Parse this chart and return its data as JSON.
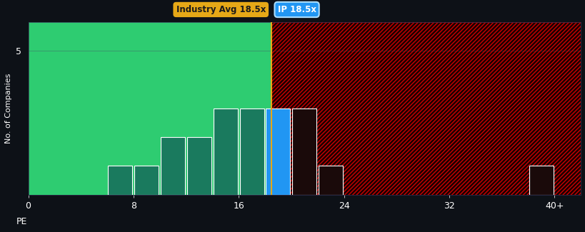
{
  "bg_color": "#0d1117",
  "plot_bg_left": "#2ecc71",
  "plot_bg_right_hatch_bg": "#1a0000",
  "bar_color_green": "#1a7a5e",
  "bar_color_blue": "#2196f3",
  "bar_color_right": "#1a0a0a",
  "bar_edge_color": "#ffffff",
  "industry_line_color": "#e6a817",
  "industry_label_bg": "#e6a817",
  "industry_label_fg": "#1a1a1a",
  "ip_label_bg": "#2196f3",
  "ip_label_fg": "#ffffff",
  "ip_label_edge": "#aaddff",
  "text_color": "#ffffff",
  "ylabel": "No. of Companies",
  "xlabel": "PE",
  "industry_avg": 18.5,
  "industry_label": "Industry Avg 18.5x",
  "ip_label": "IP 18.5x",
  "xlim": [
    0,
    42
  ],
  "ylim": [
    0,
    6
  ],
  "xticks": [
    0,
    8,
    16,
    24,
    32,
    40
  ],
  "xticklabels": [
    "0",
    "8",
    "16",
    "24",
    "32",
    "40+"
  ],
  "yticks": [
    5
  ],
  "bins": [
    0,
    2,
    4,
    6,
    8,
    10,
    12,
    14,
    16,
    18,
    20,
    22,
    24,
    26,
    28,
    30,
    32,
    34,
    36,
    38,
    40,
    42
  ],
  "bar_heights": [
    0,
    0,
    0,
    1,
    1,
    2,
    2,
    3,
    3,
    3,
    3,
    1,
    0,
    0,
    0,
    0,
    0,
    0,
    0,
    1,
    0
  ],
  "ip_bar_index": 9,
  "right_start_index": 10
}
